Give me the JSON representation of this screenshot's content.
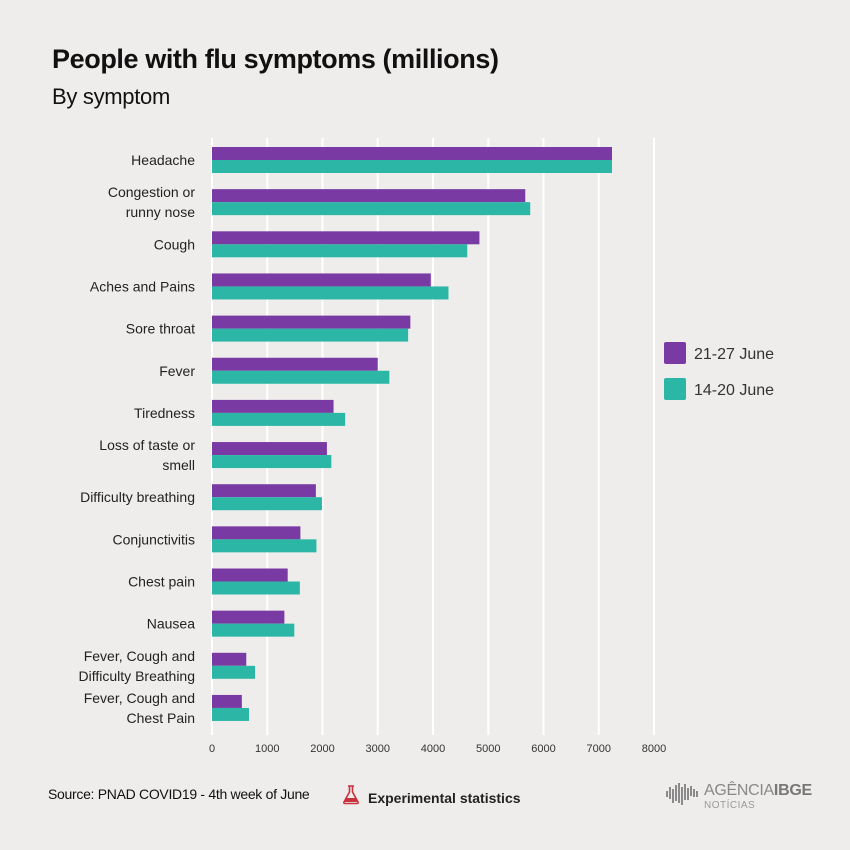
{
  "header": {
    "title": "People with flu symptoms (millions)",
    "subtitle": "By symptom"
  },
  "footer": {
    "source": "Source: PNAD COVID19 - 4th week of June",
    "experimental": "Experimental statistics",
    "logo_word1": "AGÊNCIA",
    "logo_word2": "IBGE",
    "logo_sub": "NOTÍCIAS"
  },
  "colors": {
    "series1": "#7a3aa3",
    "series2": "#2bb6a6",
    "grid": "#ffffff",
    "text": "#222222"
  },
  "chart_data": {
    "type": "bar",
    "orientation": "horizontal",
    "title": "People with flu symptoms (millions)",
    "subtitle": "By symptom",
    "categories": [
      [
        "Headache"
      ],
      [
        "Congestion or",
        "runny nose"
      ],
      [
        "Cough"
      ],
      [
        "Aches and Pains"
      ],
      [
        "Sore throat"
      ],
      [
        "Fever"
      ],
      [
        "Tiredness"
      ],
      [
        "Loss of taste or",
        "smell"
      ],
      [
        "Difficulty breathing"
      ],
      [
        "Conjunctivitis"
      ],
      [
        "Chest pain"
      ],
      [
        "Nausea"
      ],
      [
        "Fever, Cough and",
        "Difficulty Breathing"
      ],
      [
        "Fever, Cough and",
        "Chest Pain"
      ]
    ],
    "series": [
      {
        "name": "21-27 June",
        "color": "#7a3aa3",
        "values": [
          7240,
          5670,
          4840,
          3960,
          3590,
          3000,
          2200,
          2080,
          1880,
          1600,
          1370,
          1310,
          620,
          540
        ]
      },
      {
        "name": "14-20 June",
        "color": "#2bb6a6",
        "values": [
          7240,
          5760,
          4620,
          4280,
          3550,
          3210,
          2410,
          2160,
          1990,
          1890,
          1590,
          1490,
          780,
          670
        ]
      }
    ],
    "xlim": [
      0,
      8000
    ],
    "xticks": [
      0,
      1000,
      2000,
      3000,
      4000,
      5000,
      6000,
      7000,
      8000
    ],
    "grid": "vertical",
    "legend_position": "right"
  }
}
